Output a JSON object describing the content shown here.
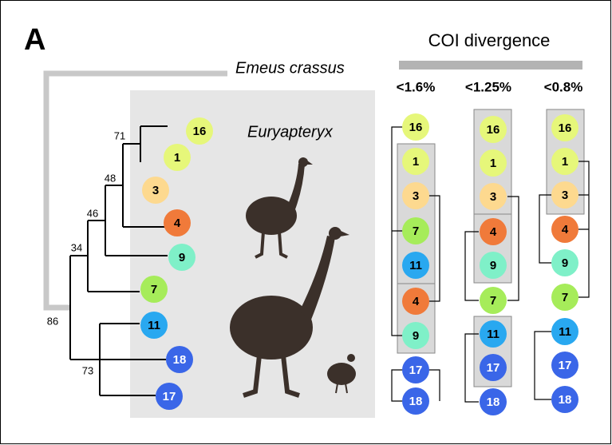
{
  "panel_label": "A",
  "outgroup": "Emeus crassus",
  "clade_label": "Euryapteryx",
  "tree": {
    "support": [
      "71",
      "48",
      "46",
      "34",
      "86",
      "73"
    ],
    "tips": [
      {
        "label": "16",
        "color": "#e6f77a"
      },
      {
        "label": "1",
        "color": "#e6f77a"
      },
      {
        "label": "3",
        "color": "#fdd98f"
      },
      {
        "label": "4",
        "color": "#f07a3a"
      },
      {
        "label": "9",
        "color": "#7ff0c8"
      },
      {
        "label": "7",
        "color": "#a6ec5a"
      },
      {
        "label": "11",
        "color": "#29a8f0"
      },
      {
        "label": "18",
        "color": "#3a66e8"
      },
      {
        "label": "17",
        "color": "#3a66e8"
      }
    ]
  },
  "divergence": {
    "title": "COI divergence",
    "columns": [
      {
        "threshold": "<1.6%",
        "tips": [
          {
            "label": "16",
            "color": "#e6f77a"
          },
          {
            "label": "1",
            "color": "#e6f77a"
          },
          {
            "label": "3",
            "color": "#fdd98f"
          },
          {
            "label": "7",
            "color": "#a6ec5a"
          },
          {
            "label": "11",
            "color": "#29a8f0"
          },
          {
            "label": "4",
            "color": "#f07a3a"
          },
          {
            "label": "9",
            "color": "#7ff0c8"
          },
          {
            "label": "17",
            "color": "#3a66e8"
          },
          {
            "label": "18",
            "color": "#3a66e8"
          }
        ]
      },
      {
        "threshold": "<1.25%",
        "tips": [
          {
            "label": "16",
            "color": "#e6f77a"
          },
          {
            "label": "1",
            "color": "#e6f77a"
          },
          {
            "label": "3",
            "color": "#fdd98f"
          },
          {
            "label": "4",
            "color": "#f07a3a"
          },
          {
            "label": "9",
            "color": "#7ff0c8"
          },
          {
            "label": "7",
            "color": "#a6ec5a"
          },
          {
            "label": "11",
            "color": "#29a8f0"
          },
          {
            "label": "17",
            "color": "#3a66e8"
          },
          {
            "label": "18",
            "color": "#3a66e8"
          }
        ]
      },
      {
        "threshold": "<0.8%",
        "tips": [
          {
            "label": "16",
            "color": "#e6f77a"
          },
          {
            "label": "1",
            "color": "#e6f77a"
          },
          {
            "label": "3",
            "color": "#fdd98f"
          },
          {
            "label": "4",
            "color": "#f07a3a"
          },
          {
            "label": "9",
            "color": "#7ff0c8"
          },
          {
            "label": "7",
            "color": "#a6ec5a"
          },
          {
            "label": "11",
            "color": "#29a8f0"
          },
          {
            "label": "17",
            "color": "#3a66e8"
          },
          {
            "label": "18",
            "color": "#3a66e8"
          }
        ]
      }
    ]
  }
}
